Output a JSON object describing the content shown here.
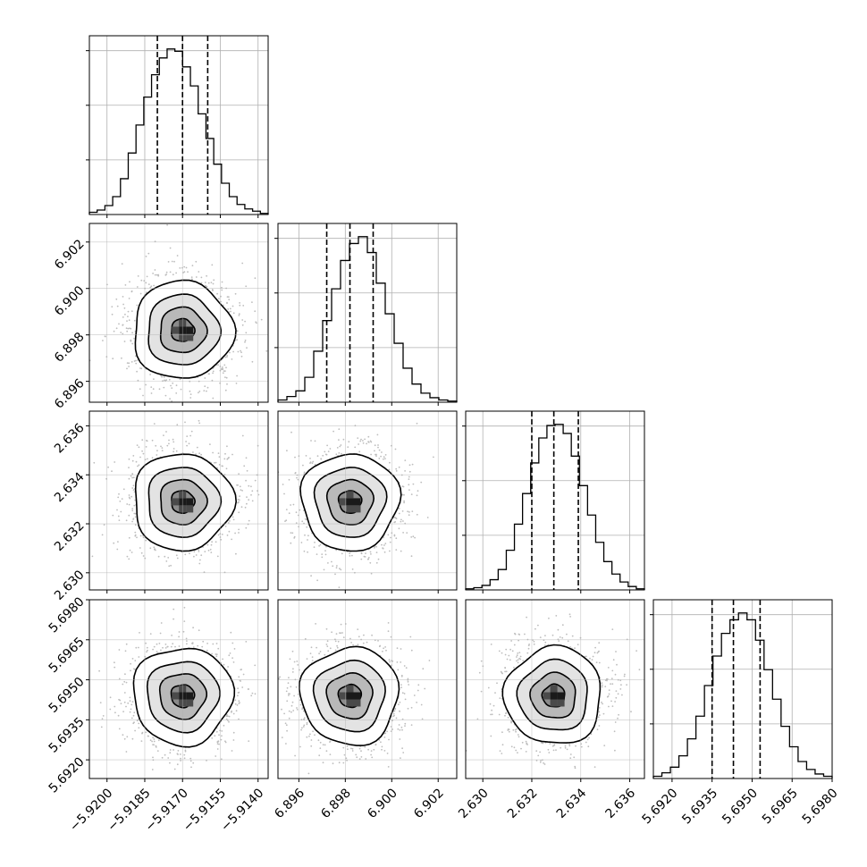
{
  "chart_data": {
    "type": "corner",
    "parameters": [
      {
        "ticks": [
          "−5.9200",
          "−5.9185",
          "−5.9170",
          "−5.9155",
          "−5.9140"
        ],
        "tick_values": [
          -5.92,
          -5.9185,
          -5.917,
          -5.9155,
          -5.914
        ],
        "range": [
          -5.9207,
          -5.9136
        ],
        "quantiles": [
          -5.918,
          -5.917,
          -5.916
        ],
        "mean": -5.917,
        "sd": 0.00092
      },
      {
        "ticks": [
          "6.896",
          "6.898",
          "6.900",
          "6.902"
        ],
        "tick_values": [
          6.896,
          6.898,
          6.9,
          6.902
        ],
        "range": [
          6.8951,
          6.9028
        ],
        "quantiles": [
          6.8972,
          6.8982,
          6.8992
        ],
        "mean": 6.8982,
        "sd": 0.00098
      },
      {
        "ticks": [
          "2.630",
          "2.632",
          "2.634",
          "2.636"
        ],
        "tick_values": [
          2.63,
          2.632,
          2.634,
          2.636
        ],
        "range": [
          2.6293,
          2.6366
        ],
        "quantiles": [
          2.632,
          2.6329,
          2.6339
        ],
        "mean": 2.6329,
        "sd": 0.00092
      },
      {
        "ticks": [
          "5.6920",
          "5.6935",
          "5.6950",
          "5.6965",
          "5.6980"
        ],
        "tick_values": [
          5.692,
          5.6935,
          5.695,
          5.6965,
          5.698
        ],
        "range": [
          5.6913,
          5.698
        ],
        "quantiles": [
          5.6935,
          5.6943,
          5.6953
        ],
        "mean": 5.6944,
        "sd": 0.00085
      }
    ],
    "histograms": [
      [
        2,
        4,
        8,
        16,
        32,
        55,
        80,
        105,
        125,
        140,
        148,
        146,
        132,
        115,
        90,
        68,
        45,
        28,
        16,
        9,
        5,
        3,
        1
      ],
      [
        2,
        5,
        10,
        22,
        45,
        72,
        100,
        125,
        140,
        146,
        132,
        105,
        78,
        52,
        30,
        16,
        8,
        4,
        2,
        1
      ],
      [
        1,
        2,
        4,
        9,
        18,
        35,
        58,
        85,
        112,
        134,
        145,
        146,
        138,
        118,
        92,
        66,
        42,
        25,
        14,
        7,
        3,
        1
      ],
      [
        2,
        5,
        10,
        20,
        35,
        55,
        82,
        108,
        128,
        140,
        146,
        140,
        122,
        96,
        70,
        46,
        28,
        15,
        8,
        4,
        2
      ]
    ],
    "grid": true,
    "contour_levels": 4
  }
}
